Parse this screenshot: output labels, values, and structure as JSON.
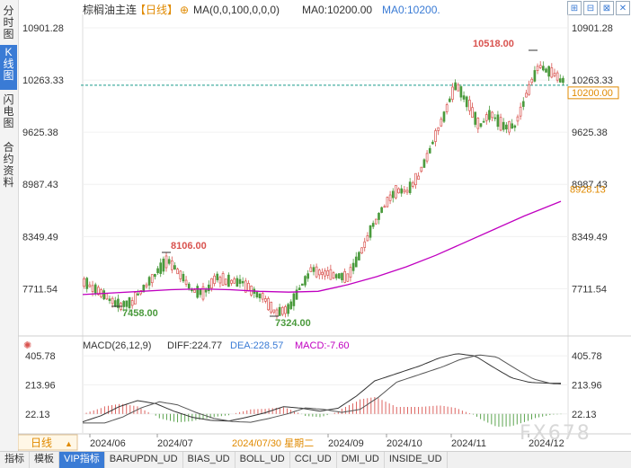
{
  "left_tabs": [
    {
      "label": "分时图",
      "active": false
    },
    {
      "label": "K线图",
      "active": true
    },
    {
      "label": "闪电图",
      "active": false
    },
    {
      "label": "合约资料",
      "active": false
    }
  ],
  "header": {
    "symbol": "棕榈油主连",
    "period": "【日线】",
    "add_icon": "⊕",
    "ma_params": "MA(0,0,100,0,0,0)",
    "ma_value": "MA0:10200.00",
    "ma_value2": "MA0:10200."
  },
  "top_icons": [
    "⊞",
    "⊟",
    "⊠",
    "✕"
  ],
  "price_axis": {
    "labels": [
      "10901.28",
      "10263.33",
      "9625.38",
      "8987.43",
      "8349.49",
      "7711.54"
    ],
    "current_price_tag": "10200.00",
    "ma_tag": "8928.13",
    "ticks": [
      10901.28,
      10263.33,
      9625.38,
      8987.43,
      8349.49,
      7711.54
    ]
  },
  "annotations": {
    "high_label": "10518.00",
    "high2_label": "8106.00",
    "low_label": "7458.00",
    "low2_label": "7324.00"
  },
  "macd": {
    "header": "MACD(26,12,9)",
    "diff": "DIFF:224.77",
    "dea": "DEA:228.57",
    "macd": "MACD:-7.60",
    "axis_labels": [
      "405.78",
      "213.96",
      "22.13"
    ],
    "axis_ticks": [
      405.78,
      213.96,
      22.13
    ]
  },
  "time_axis": {
    "period_button": "日线",
    "labels": [
      "2024/06",
      "2024/07",
      "2024/09",
      "2024/10",
      "2024/11",
      "2024/12"
    ],
    "cursor_date": "2024/07/30 星期二"
  },
  "bottom_tabs": [
    {
      "label": "指标",
      "active": false
    },
    {
      "label": "模板",
      "active": false
    },
    {
      "label": "VIP指标",
      "active": true
    },
    {
      "label": "BARUPDN_UD",
      "active": false
    },
    {
      "label": "BIAS_UD",
      "active": false
    },
    {
      "label": "BOLL_UD",
      "active": false
    },
    {
      "label": "CCI_UD",
      "active": false
    },
    {
      "label": "DMI_UD",
      "active": false
    },
    {
      "label": "INSIDE_UD",
      "active": false
    }
  ],
  "watermark": "FX678",
  "colors": {
    "up": "#d9534f",
    "down": "#4a9a3c",
    "ma": "#c000c0",
    "diff": "#333333",
    "dea": "#555555",
    "current_line": "#1a9a8a",
    "accent": "#3a7bd5",
    "ma_tag": "#e08a00"
  },
  "chart_data": {
    "type": "candlestick",
    "anchors": [
      [
        7800,
        7650
      ],
      [
        7700,
        7600
      ],
      [
        7600,
        7620
      ],
      [
        7500,
        7460
      ],
      [
        7550,
        7650
      ],
      [
        7720,
        7800
      ],
      [
        7900,
        8010
      ],
      [
        8050,
        8106
      ],
      [
        7900,
        7800
      ],
      [
        7700,
        7650
      ],
      [
        7650,
        7720
      ],
      [
        7850,
        7950
      ],
      [
        7800,
        7750
      ],
      [
        7800,
        7830
      ],
      [
        7700,
        7760
      ],
      [
        7600,
        7520
      ],
      [
        7420,
        7324
      ],
      [
        7450,
        7600
      ],
      [
        7700,
        8000
      ],
      [
        7950,
        8050
      ],
      [
        7900,
        7950
      ],
      [
        7880,
        7800
      ],
      [
        7850,
        8000
      ],
      [
        8100,
        8350
      ],
      [
        8450,
        8600
      ],
      [
        8700,
        8850
      ],
      [
        8900,
        8980
      ],
      [
        8900,
        9000
      ],
      [
        9100,
        9350
      ],
      [
        9450,
        9650
      ],
      [
        9800,
        10100
      ],
      [
        10200,
        10300
      ],
      [
        10000,
        9800
      ],
      [
        9700,
        9950
      ],
      [
        9850,
        9800
      ],
      [
        9700,
        9550
      ],
      [
        9700,
        9900
      ],
      [
        10100,
        10350
      ],
      [
        10450,
        10518
      ],
      [
        10350,
        10300
      ],
      [
        10250,
        10200
      ]
    ],
    "ma_anchors": [
      [
        0,
        7640
      ],
      [
        20,
        7660
      ],
      [
        40,
        7680
      ],
      [
        60,
        7700
      ],
      [
        80,
        7710
      ],
      [
        100,
        7700
      ],
      [
        120,
        7680
      ],
      [
        140,
        7670
      ],
      [
        160,
        7680
      ],
      [
        180,
        7760
      ],
      [
        200,
        7860
      ],
      [
        220,
        7980
      ],
      [
        240,
        8120
      ],
      [
        260,
        8280
      ],
      [
        280,
        8440
      ],
      [
        300,
        8600
      ],
      [
        325,
        8780
      ]
    ],
    "price_range": [
      7200,
      11000
    ],
    "candle_count": 170,
    "macd_anchors": [
      [
        0,
        -30
      ],
      [
        10,
        10
      ],
      [
        20,
        70
      ],
      [
        30,
        110
      ],
      [
        40,
        90
      ],
      [
        50,
        40
      ],
      [
        60,
        0
      ],
      [
        70,
        -20
      ],
      [
        80,
        -25
      ],
      [
        90,
        0
      ],
      [
        100,
        30
      ],
      [
        110,
        70
      ],
      [
        120,
        60
      ],
      [
        130,
        40
      ],
      [
        140,
        60
      ],
      [
        150,
        140
      ],
      [
        160,
        240
      ],
      [
        175,
        300
      ],
      [
        185,
        340
      ],
      [
        195,
        390
      ],
      [
        205,
        420
      ],
      [
        215,
        405
      ],
      [
        225,
        330
      ],
      [
        235,
        260
      ],
      [
        245,
        230
      ],
      [
        255,
        225
      ],
      [
        262,
        225
      ]
    ],
    "macd_range": [
      -80,
      430
    ]
  }
}
